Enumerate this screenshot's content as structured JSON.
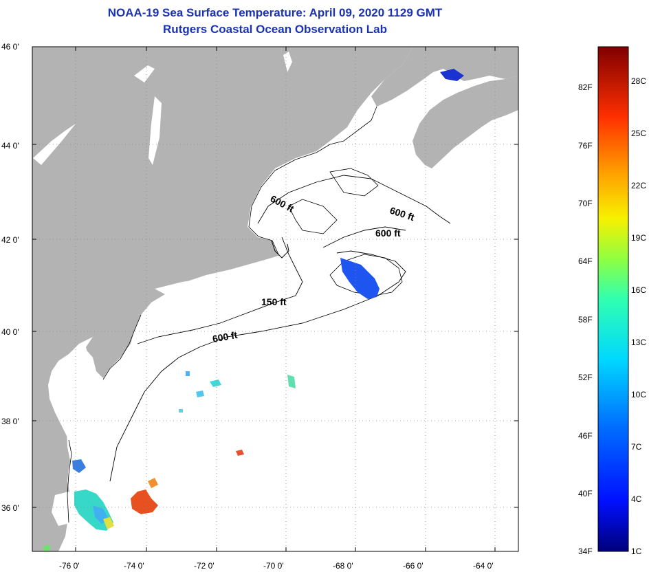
{
  "title_line1": "NOAA-19 Sea Surface Temperature:  April 09, 2020 1129 GMT",
  "title_line2": "Rutgers Coastal Ocean Observation Lab",
  "lat_labels": [
    "46 0'",
    "44 0'",
    "42 0'",
    "40 0'",
    "38 0'",
    "36 0'"
  ],
  "lon_labels": [
    "-76 0'",
    "-74 0'",
    "-72 0'",
    "-70 0'",
    "-68 0'",
    "-66 0'",
    "-64 0'"
  ],
  "contour_labels": [
    "600 ft",
    "600 ft",
    "600 ft",
    "150 ft",
    "600 ft"
  ],
  "colorbar": {
    "fahrenheit": [
      "82F",
      "76F",
      "70F",
      "64F",
      "58F",
      "52F",
      "46F",
      "40F",
      "34F"
    ],
    "celsius": [
      "28C",
      "25C",
      "22C",
      "19C",
      "16C",
      "13C",
      "10C",
      "7C",
      "4C",
      "1C"
    ]
  },
  "colors": {
    "land": "#b3b3b3",
    "ocean": "#ffffff",
    "title": "#1a33b3"
  }
}
